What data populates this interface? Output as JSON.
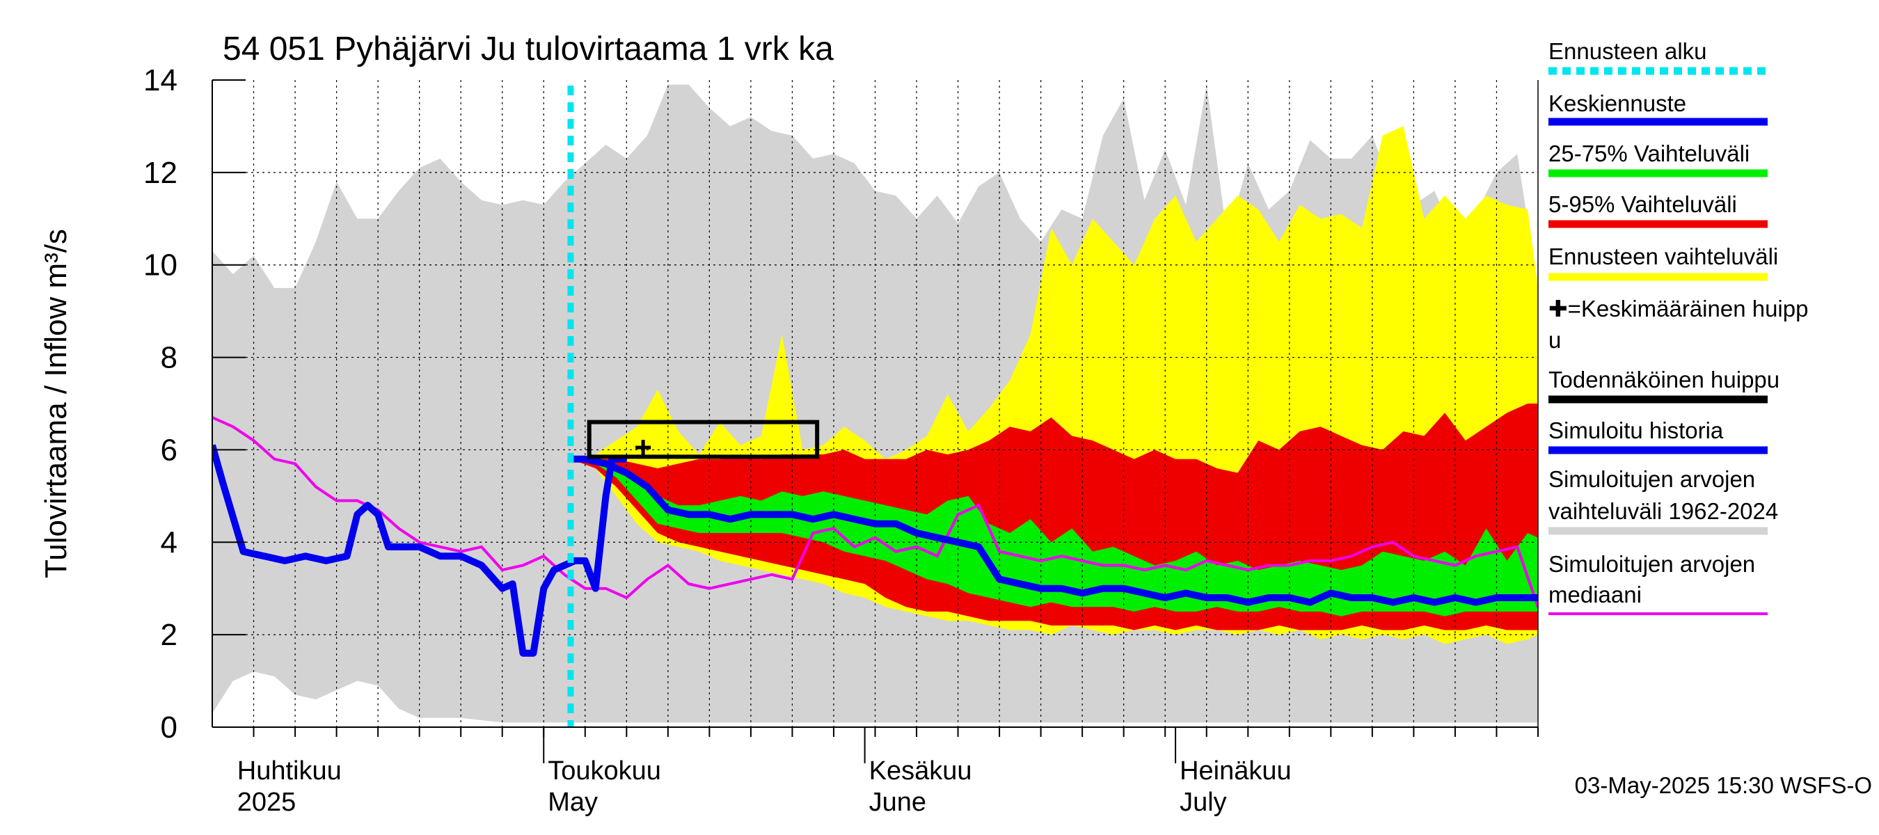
{
  "chart_data": {
    "type": "area",
    "title": "54 051 Pyhäjärvi Ju tulovirtaama 1 vrk ka",
    "ylabel": "Tulovirtaama / Inflow   m³/s",
    "ylim": [
      0,
      14
    ],
    "yticks": [
      0,
      2,
      4,
      6,
      8,
      10,
      12,
      14
    ],
    "xlim_days": [
      -32,
      96
    ],
    "x_unit": "days relative to 1 May 2025",
    "month_labels": [
      {
        "day": -30,
        "line1": "Huhtikuu",
        "line2": "2025"
      },
      {
        "day": 0,
        "line1": "Toukokuu",
        "line2": "May"
      },
      {
        "day": 31,
        "line1": "Kesäkuu",
        "line2": "June"
      },
      {
        "day": 61,
        "line1": "Heinäkuu",
        "line2": "July"
      }
    ],
    "month_boundaries": [
      0,
      31,
      61
    ],
    "forecast_start_day": 2.6,
    "timestamp": "03-May-2025 15:30 WSFS-O",
    "legend": [
      {
        "label": "Ennusteen alku",
        "color": "#00e5ee",
        "style": "dotted"
      },
      {
        "label": "Keskiennuste",
        "color": "#0000ee",
        "style": "line"
      },
      {
        "label": "25-75% Vaihteluväli",
        "color": "#00ee00",
        "style": "line"
      },
      {
        "label": "5-95% Vaihteluväli",
        "color": "#ee0000",
        "style": "line"
      },
      {
        "label": "Ennusteen vaihteluväli",
        "color": "#ffff00",
        "style": "line"
      },
      {
        "label": "✚=Keskimääräinen huippu",
        "color": "#000000",
        "style": "none"
      },
      {
        "label": "Todennäköinen huippu",
        "color": "#000000",
        "style": "line"
      },
      {
        "label": "Simuloitu historia",
        "color": "#0000ee",
        "style": "line"
      },
      {
        "label": "Simuloitujen arvojen vaihteluväli 1962-2024",
        "color": "#d3d3d3",
        "style": "line"
      },
      {
        "label": "Simuloitujen arvojen mediaani",
        "color": "#ee00ee",
        "style": "thin"
      }
    ],
    "colors": {
      "history_range": "#d3d3d3",
      "forecast_range": "#ffff00",
      "p5_95": "#ee0000",
      "p25_75": "#00ee00",
      "mean_forecast": "#0000ee",
      "simulated_history": "#0000ee",
      "median": "#ee00ee",
      "forecast_start": "#00e5ee",
      "peak_box": "#000000"
    },
    "series": {
      "history_range": {
        "days": [
          -32,
          -30,
          -28,
          -26,
          -24,
          -22,
          -20,
          -18,
          -16,
          -14,
          -12,
          -10,
          -8,
          -6,
          -4,
          -2,
          0,
          2,
          4,
          6,
          8,
          10,
          12,
          14,
          16,
          18,
          20,
          22,
          24,
          26,
          28,
          30,
          32,
          34,
          36,
          38,
          40,
          42,
          44,
          46,
          48,
          50,
          52,
          54,
          56,
          58,
          60,
          62,
          64,
          66,
          68,
          70,
          72,
          74,
          76,
          78,
          80,
          82,
          84,
          86,
          88,
          90,
          92,
          94,
          96
        ],
        "upper": [
          10.3,
          9.8,
          10.2,
          9.5,
          9.5,
          10.5,
          11.8,
          11.0,
          11.0,
          11.6,
          12.1,
          12.3,
          11.8,
          11.4,
          11.3,
          11.4,
          11.3,
          11.8,
          12.2,
          12.6,
          12.3,
          12.8,
          13.9,
          13.9,
          13.4,
          13.0,
          13.2,
          12.9,
          12.8,
          12.3,
          12.4,
          12.2,
          11.6,
          11.5,
          11.0,
          11.5,
          10.9,
          11.7,
          12.0,
          11.0,
          10.5,
          11.2,
          11.0,
          12.8,
          13.6,
          11.4,
          12.5,
          11.3,
          13.9,
          10.6,
          12.2,
          11.2,
          11.6,
          12.7,
          12.3,
          12.3,
          12.8,
          11.6,
          11.3,
          11.6,
          10.6,
          11.1,
          12.0,
          12.4,
          9.5
        ],
        "lower": [
          0.3,
          1.0,
          1.2,
          1.1,
          0.7,
          0.6,
          0.8,
          1.0,
          0.9,
          0.4,
          0.2,
          0.2,
          0.2,
          0.15,
          0.1,
          0.1,
          0.1,
          0.1,
          0.1,
          0.1,
          0.1,
          0.1,
          0.1,
          0.1,
          0.1,
          0.1,
          0.1,
          0.1,
          0.1,
          0.1,
          0.1,
          0.1,
          0.1,
          0.1,
          0.1,
          0.1,
          0.1,
          0.1,
          0.1,
          0.1,
          0.1,
          0.1,
          0.1,
          0.1,
          0.1,
          0.1,
          0.1,
          0.1,
          0.1,
          0.1,
          0.1,
          0.1,
          0.1,
          0.1,
          0.1,
          0.1,
          0.1,
          0.1,
          0.1,
          0.1,
          0.1,
          0.1,
          0.1,
          0.1,
          0.1
        ]
      },
      "forecast_range": {
        "days": [
          2.6,
          5,
          7,
          9,
          11,
          13,
          15,
          17,
          19,
          21,
          23,
          25,
          27,
          29,
          31,
          33,
          35,
          37,
          39,
          41,
          43,
          45,
          47,
          49,
          51,
          53,
          55,
          57,
          59,
          61,
          63,
          65,
          67,
          69,
          71,
          73,
          75,
          77,
          79,
          81,
          83,
          85,
          87,
          89,
          91,
          93,
          95,
          96
        ],
        "upper": [
          5.8,
          5.9,
          6.2,
          6.5,
          7.3,
          6.4,
          5.9,
          6.6,
          6.1,
          6.3,
          8.5,
          6.0,
          6.1,
          6.5,
          6.2,
          5.8,
          6.0,
          6.3,
          7.2,
          6.4,
          6.9,
          7.5,
          8.5,
          10.8,
          10.0,
          11.0,
          10.5,
          10.0,
          11.0,
          11.5,
          10.5,
          11.0,
          11.5,
          11.2,
          10.5,
          11.3,
          11.0,
          11.1,
          10.8,
          12.8,
          13.0,
          11.0,
          11.5,
          11.0,
          11.5,
          11.3,
          11.2,
          9.5
        ],
        "lower": [
          5.8,
          5.6,
          5.0,
          4.4,
          4.0,
          3.9,
          3.8,
          3.6,
          3.5,
          3.4,
          3.3,
          3.2,
          3.1,
          2.9,
          2.8,
          2.6,
          2.5,
          2.4,
          2.3,
          2.3,
          2.2,
          2.1,
          2.1,
          2.0,
          2.2,
          2.1,
          2.0,
          2.1,
          2.1,
          2.0,
          2.1,
          2.1,
          2.0,
          2.1,
          2.0,
          2.1,
          1.9,
          2.0,
          1.9,
          2.0,
          1.9,
          2.0,
          1.8,
          1.9,
          2.0,
          1.8,
          1.9,
          2.0
        ]
      },
      "p5_95": {
        "days": [
          2.6,
          5,
          7,
          9,
          11,
          13,
          15,
          17,
          19,
          21,
          23,
          25,
          27,
          29,
          31,
          33,
          35,
          37,
          39,
          41,
          43,
          45,
          47,
          49,
          51,
          53,
          55,
          57,
          59,
          61,
          63,
          65,
          67,
          69,
          71,
          73,
          75,
          77,
          79,
          81,
          83,
          85,
          87,
          89,
          91,
          93,
          95,
          96
        ],
        "upper": [
          5.8,
          5.8,
          5.8,
          5.7,
          5.6,
          5.7,
          5.8,
          5.8,
          5.9,
          5.8,
          5.9,
          5.9,
          5.9,
          6.0,
          5.8,
          5.8,
          5.8,
          6.0,
          5.9,
          6.0,
          6.2,
          6.5,
          6.4,
          6.7,
          6.3,
          6.2,
          6.0,
          5.8,
          6.0,
          5.8,
          5.8,
          5.6,
          5.5,
          6.2,
          6.0,
          6.4,
          6.5,
          6.3,
          6.1,
          6.0,
          6.4,
          6.3,
          6.8,
          6.2,
          6.5,
          6.8,
          7.0,
          7.0
        ],
        "lower": [
          5.8,
          5.6,
          5.2,
          4.7,
          4.2,
          4.0,
          3.9,
          3.8,
          3.7,
          3.6,
          3.5,
          3.4,
          3.3,
          3.2,
          3.1,
          2.8,
          2.6,
          2.5,
          2.5,
          2.4,
          2.3,
          2.3,
          2.3,
          2.2,
          2.2,
          2.2,
          2.2,
          2.1,
          2.2,
          2.1,
          2.2,
          2.1,
          2.1,
          2.1,
          2.2,
          2.1,
          2.1,
          2.1,
          2.2,
          2.1,
          2.1,
          2.2,
          2.1,
          2.1,
          2.2,
          2.1,
          2.1,
          2.1
        ]
      },
      "p25_75": {
        "days": [
          2.6,
          5,
          7,
          9,
          11,
          13,
          15,
          17,
          19,
          21,
          23,
          25,
          27,
          29,
          31,
          33,
          35,
          37,
          39,
          41,
          43,
          45,
          47,
          49,
          51,
          53,
          55,
          57,
          59,
          61,
          63,
          65,
          67,
          69,
          71,
          73,
          75,
          77,
          79,
          81,
          83,
          85,
          87,
          89,
          91,
          93,
          95,
          96
        ],
        "upper": [
          5.8,
          5.8,
          5.6,
          5.3,
          5.0,
          4.8,
          4.8,
          4.9,
          5.0,
          4.9,
          5.1,
          5.0,
          5.1,
          5.0,
          4.9,
          4.8,
          4.7,
          4.6,
          4.9,
          5.0,
          4.4,
          4.2,
          4.5,
          4.0,
          4.3,
          3.8,
          3.9,
          3.7,
          3.5,
          3.6,
          3.8,
          3.5,
          3.6,
          3.4,
          3.5,
          3.6,
          3.5,
          3.4,
          3.5,
          3.8,
          3.7,
          3.6,
          3.8,
          3.5,
          4.3,
          3.6,
          4.2,
          4.1
        ],
        "lower": [
          5.8,
          5.7,
          5.4,
          4.9,
          4.4,
          4.3,
          4.2,
          4.2,
          4.2,
          4.2,
          4.2,
          4.1,
          4.0,
          3.8,
          3.7,
          3.6,
          3.4,
          3.2,
          3.1,
          2.9,
          2.8,
          2.7,
          2.6,
          2.7,
          2.6,
          2.6,
          2.6,
          2.5,
          2.6,
          2.5,
          2.5,
          2.6,
          2.5,
          2.5,
          2.6,
          2.5,
          2.5,
          2.4,
          2.5,
          2.5,
          2.5,
          2.5,
          2.4,
          2.5,
          2.5,
          2.5,
          2.5,
          2.5
        ]
      },
      "mean_forecast": {
        "days": [
          2.6,
          4,
          6,
          8,
          10,
          12,
          14,
          16,
          18,
          20,
          22,
          24,
          26,
          28,
          30,
          32,
          34,
          36,
          38,
          40,
          42,
          44,
          46,
          48,
          50,
          52,
          54,
          56,
          58,
          60,
          62,
          64,
          66,
          68,
          70,
          72,
          74,
          76,
          78,
          80,
          82,
          84,
          86,
          88,
          90,
          92,
          94,
          96
        ],
        "values": [
          5.8,
          5.8,
          5.7,
          5.5,
          5.2,
          4.7,
          4.6,
          4.6,
          4.5,
          4.6,
          4.6,
          4.6,
          4.5,
          4.6,
          4.5,
          4.4,
          4.4,
          4.2,
          4.1,
          4.0,
          3.9,
          3.2,
          3.1,
          3.0,
          3.0,
          2.9,
          3.0,
          3.0,
          2.9,
          2.8,
          2.9,
          2.8,
          2.8,
          2.7,
          2.8,
          2.8,
          2.7,
          2.9,
          2.8,
          2.8,
          2.7,
          2.8,
          2.7,
          2.8,
          2.7,
          2.8,
          2.8,
          2.8
        ]
      },
      "simulated_history": {
        "days": [
          -32,
          -31,
          -29,
          -27,
          -25,
          -23,
          -21,
          -19,
          -18,
          -17,
          -16,
          -15,
          -14,
          -12,
          -10,
          -8,
          -6,
          -4,
          -3,
          -2,
          -1,
          0,
          1,
          2,
          3,
          4,
          5,
          6,
          6.6,
          7,
          8
        ],
        "values": [
          6.1,
          5.3,
          3.8,
          3.7,
          3.6,
          3.7,
          3.6,
          3.7,
          4.6,
          4.8,
          4.6,
          3.9,
          3.9,
          3.9,
          3.7,
          3.7,
          3.5,
          3.0,
          3.1,
          1.6,
          1.6,
          3.0,
          3.4,
          3.5,
          3.6,
          3.6,
          3.0,
          5.0,
          5.8,
          5.8,
          5.8
        ]
      },
      "median": {
        "days": [
          -32,
          -30,
          -28,
          -26,
          -24,
          -22,
          -20,
          -18,
          -16,
          -14,
          -12,
          -10,
          -8,
          -6,
          -4,
          -2,
          0,
          2,
          4,
          6,
          8,
          10,
          12,
          14,
          16,
          18,
          20,
          22,
          24,
          26,
          28,
          30,
          32,
          34,
          36,
          38,
          40,
          42,
          44,
          46,
          48,
          50,
          52,
          54,
          56,
          58,
          60,
          62,
          64,
          66,
          68,
          70,
          72,
          74,
          76,
          78,
          80,
          82,
          84,
          86,
          88,
          90,
          92,
          94,
          96
        ],
        "values": [
          6.7,
          6.5,
          6.2,
          5.8,
          5.7,
          5.2,
          4.9,
          4.9,
          4.7,
          4.3,
          4.0,
          3.9,
          3.8,
          3.9,
          3.4,
          3.5,
          3.7,
          3.3,
          3.0,
          3.0,
          2.8,
          3.2,
          3.5,
          3.1,
          3.0,
          3.1,
          3.2,
          3.3,
          3.2,
          4.2,
          4.3,
          3.9,
          4.1,
          3.8,
          3.9,
          3.7,
          4.6,
          4.8,
          3.8,
          3.7,
          3.6,
          3.7,
          3.6,
          3.5,
          3.5,
          3.4,
          3.5,
          3.4,
          3.6,
          3.5,
          3.4,
          3.5,
          3.5,
          3.6,
          3.6,
          3.7,
          3.9,
          4.0,
          3.7,
          3.6,
          3.5,
          3.7,
          3.8,
          3.9,
          2.6
        ]
      },
      "peak_box": {
        "day_start": 4.4,
        "day_end": 26.4,
        "y_low": 5.85,
        "y_high": 6.6
      },
      "mean_peak": {
        "day": 9.6,
        "value": 6.05
      }
    }
  }
}
